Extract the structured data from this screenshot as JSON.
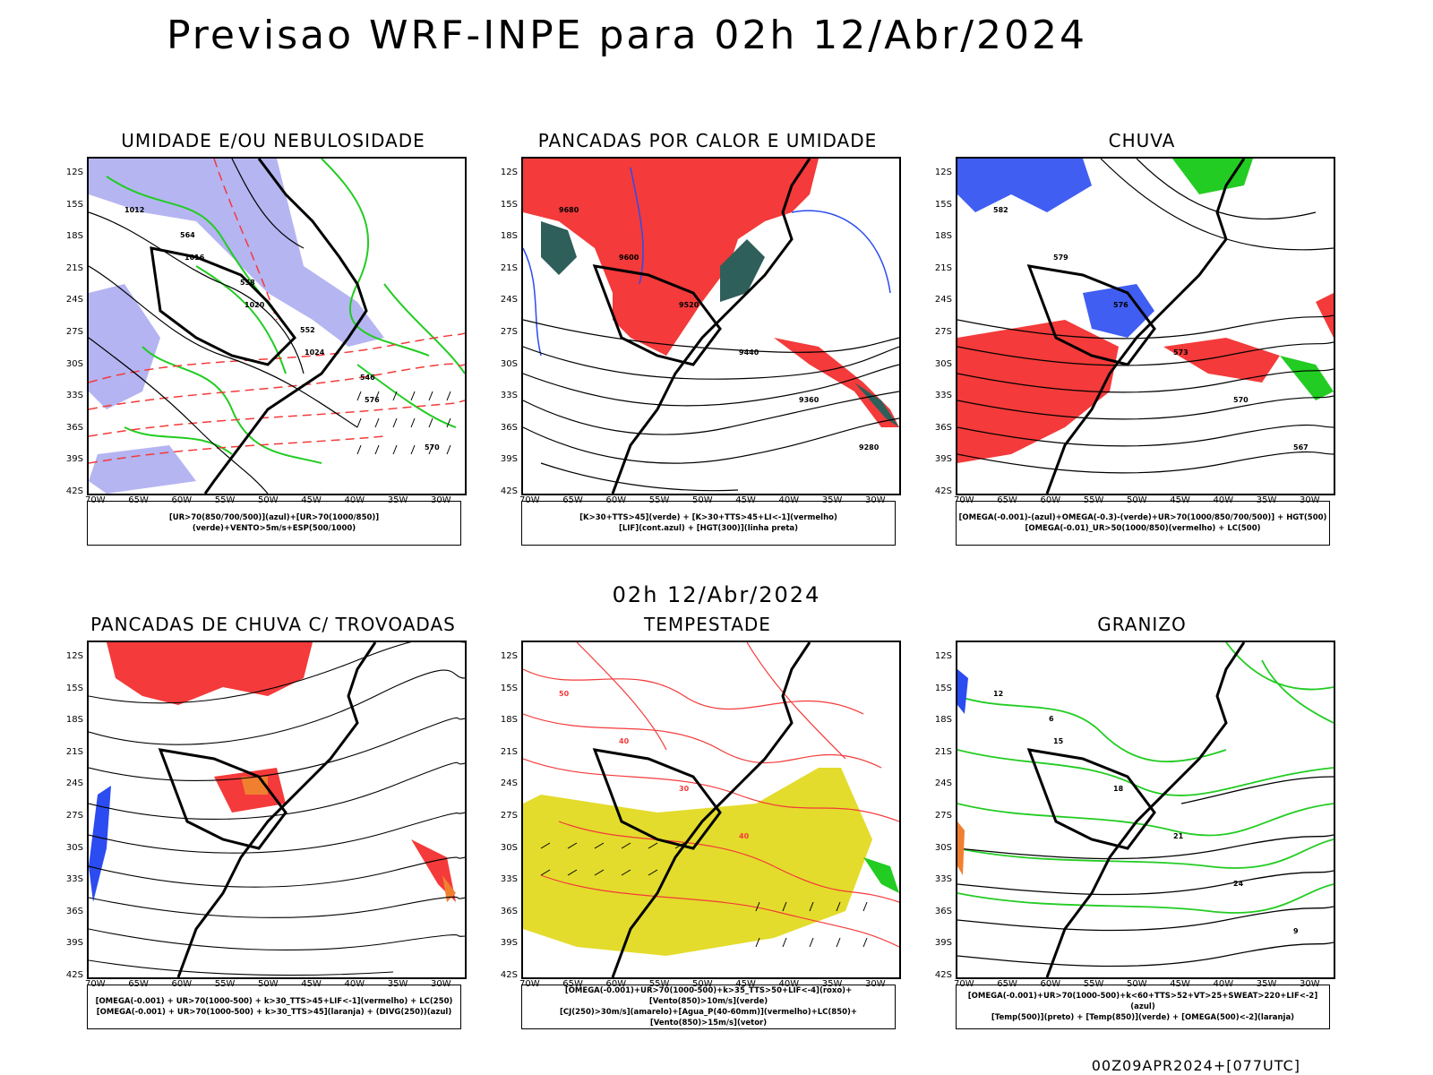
{
  "title": "Previsao WRF-INPE  para 02h 12/Abr/2024",
  "mid_title": "02h 12/Abr/2024",
  "footer": "00Z09APR2024+[077UTC]",
  "lat_labels": [
    "12S",
    "15S",
    "18S",
    "21S",
    "24S",
    "27S",
    "30S",
    "33S",
    "36S",
    "39S",
    "42S"
  ],
  "lon_labels": [
    "70W",
    "65W",
    "60W",
    "55W",
    "50W",
    "45W",
    "40W",
    "35W",
    "30W"
  ],
  "panels": [
    {
      "title": "UMIDADE E/OU NEBULOSIDADE",
      "legend": [
        "[UR>70(850/700/500)](azul)+[UR>70(1000/850)](verde)+VENTO>5m/s+ESP(500/1000)"
      ],
      "contour_labels": [
        "1012",
        "1016",
        "1020",
        "1024",
        "576",
        "570",
        "564",
        "558",
        "552",
        "546"
      ]
    },
    {
      "title": "PANCADAS POR CALOR E UMIDADE",
      "legend": [
        "[K>30+TTS>45](verde) + [K>30+TTS>45+LI<-1](vermelho)",
        "[LIF](cont.azul) + [HGT(300)](linha preta)"
      ],
      "contour_labels": [
        "9680",
        "9600",
        "9520",
        "9440",
        "9360",
        "9280"
      ]
    },
    {
      "title": "CHUVA",
      "legend": [
        "[OMEGA(-0.001)-(azul)+OMEGA(-0.3)-(verde)+UR>70(1000/850/700/500)] + HGT(500)",
        "[OMEGA(-0.01)_UR>50(1000/850)(vermelho) + LC(500)"
      ],
      "contour_labels": [
        "582",
        "579",
        "576",
        "573",
        "570",
        "567"
      ]
    },
    {
      "title": "PANCADAS DE CHUVA C/ TROVOADAS",
      "legend": [
        "[OMEGA(-0.001) + UR>70(1000-500) + k>30_TTS>45+LIF<-1](vermelho) + LC(250)",
        "[OMEGA(-0.001) + UR>70(1000-500) + k>30_TTS>45](laranja) + (DIVG(250))(azul)"
      ],
      "contour_labels": []
    },
    {
      "title": "TEMPESTADE",
      "legend": [
        "[OMEGA(-0.001)+UR>70(1000-500)+k>35_TTS>50+LIF<-4](roxo)+[Vento(850)>10m/s](verde)",
        "[CJ(250)>30m/s](amarelo)+[Agua_P(40-60mm)](vermelho)+LC(850)+[Vento(850)>15m/s](vetor)"
      ],
      "contour_labels": [
        "50",
        "40",
        "30",
        "40"
      ]
    },
    {
      "title": "GRANIZO",
      "legend": [
        "[OMEGA(-0.001)+UR>70(1000-500)+k<60+TTS>52+VT>25+SWEAT>220+LIF<-2](azul)",
        "[Temp(500)](preto) + [Temp(850)](verde) + [OMEGA(500)<-2](laranja)"
      ],
      "contour_labels": [
        "12",
        "15",
        "18",
        "21",
        "24",
        "9",
        "6"
      ]
    }
  ],
  "colors": {
    "red": "#f43a3a",
    "blue": "#2b4cf0",
    "green": "#22cc22",
    "lavender": "#a8a8f0",
    "yellow": "#e3dc2c",
    "teal": "#2f5f5a",
    "orange": "#f08030",
    "black": "#000000"
  }
}
